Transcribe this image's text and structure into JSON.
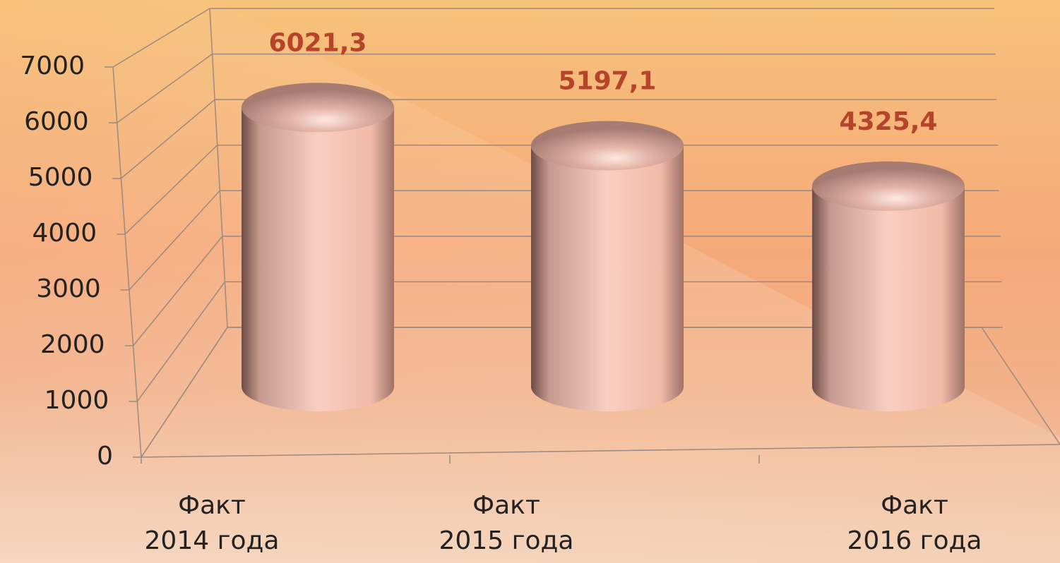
{
  "chart_data": {
    "type": "bar3d",
    "categories": [
      "Факт\n2014 года",
      "Факт\n2015 года",
      "Факт\n2016 года"
    ],
    "values": [
      6021.3,
      5197.1,
      4325.4
    ],
    "value_labels": [
      "6021,3",
      "5197,1",
      "4325,4"
    ],
    "color": "#f2b9a8",
    "label_color": "#b5442a",
    "ylim": [
      0,
      7000
    ],
    "yticks": [
      0,
      1000,
      2000,
      3000,
      4000,
      5000,
      6000,
      7000
    ],
    "grid": true
  }
}
